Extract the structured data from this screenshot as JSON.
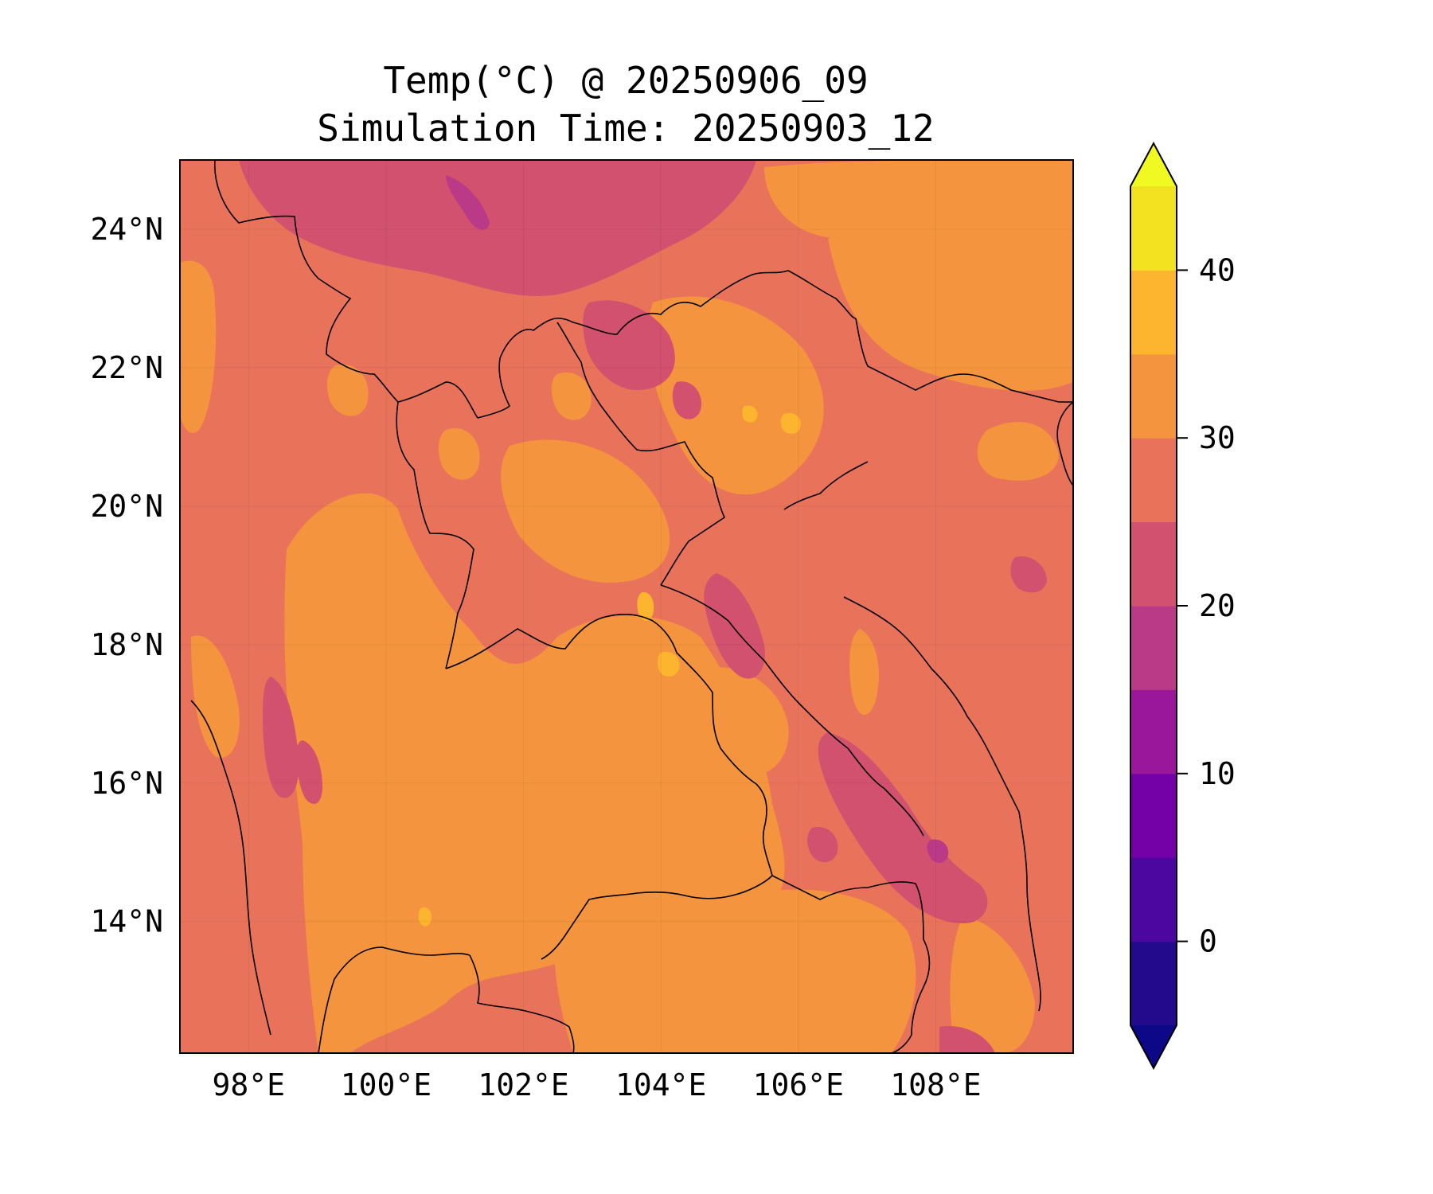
{
  "map": {
    "title_line1": "Temp(°C) @ 20250906_09",
    "title_line2": "Simulation Time: 20250903_12",
    "lon_range": [
      97.0,
      110.0
    ],
    "lat_range": [
      12.1,
      25.0
    ],
    "lon_ticks": [
      {
        "value": 98,
        "label": "98°E"
      },
      {
        "value": 100,
        "label": "100°E"
      },
      {
        "value": 102,
        "label": "102°E"
      },
      {
        "value": 104,
        "label": "104°E"
      },
      {
        "value": 106,
        "label": "106°E"
      },
      {
        "value": 108,
        "label": "108°E"
      }
    ],
    "lat_ticks": [
      {
        "value": 24,
        "label": "24°N"
      },
      {
        "value": 22,
        "label": "22°N"
      },
      {
        "value": 20,
        "label": "20°N"
      },
      {
        "value": 18,
        "label": "18°N"
      },
      {
        "value": 16,
        "label": "16°N"
      },
      {
        "value": 14,
        "label": "14°N"
      }
    ],
    "colors": {
      "band_25_30": "#e8735a",
      "band_30_35": "#f4943f",
      "band_20_25": "#d2516e",
      "band_15_20": "#bb3a87",
      "band_35_40": "#fdb42f",
      "band_40_45": "#f1e025"
    }
  },
  "colorbar": {
    "levels": [
      -5,
      0,
      5,
      10,
      15,
      20,
      25,
      30,
      35,
      40,
      45
    ],
    "colors": [
      "#230a8c",
      "#4c07a0",
      "#7401a8",
      "#9a179b",
      "#bb3a87",
      "#d2516e",
      "#e8735a",
      "#f4943f",
      "#fdb42f",
      "#f3e220"
    ],
    "under_color": "#0d0887",
    "over_color": "#f0f921",
    "ticks": [
      {
        "value": 0,
        "label": "0"
      },
      {
        "value": 10,
        "label": "10"
      },
      {
        "value": 20,
        "label": "20"
      },
      {
        "value": 30,
        "label": "30"
      },
      {
        "value": 40,
        "label": "40"
      }
    ]
  }
}
